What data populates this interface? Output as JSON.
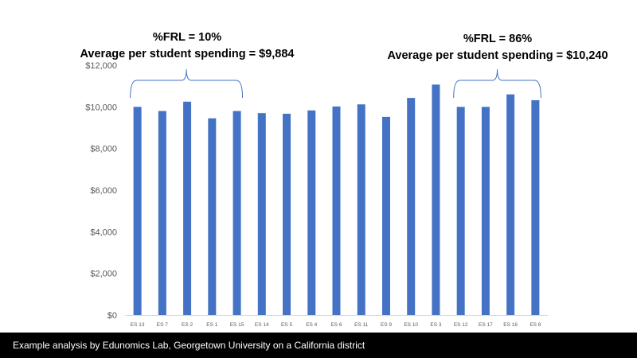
{
  "chart_data": {
    "type": "bar",
    "categories": [
      "ES 13",
      "ES 7",
      "ES 2",
      "ES 1",
      "ES 15",
      "ES 14",
      "ES 5",
      "ES 4",
      "ES 6",
      "ES 11",
      "ES 9",
      "ES 10",
      "ES 3",
      "ES 12",
      "ES 17",
      "ES 16",
      "ES 8"
    ],
    "values": [
      10000,
      9800,
      10250,
      9450,
      9800,
      9700,
      9670,
      9830,
      10020,
      10120,
      9520,
      10430,
      11070,
      10000,
      10000,
      10600,
      10320
    ],
    "ylim": [
      0,
      12000
    ],
    "y_ticks": [
      0,
      2000,
      4000,
      6000,
      8000,
      10000,
      12000
    ],
    "y_tick_labels": [
      "$0",
      "$2,000",
      "$4,000",
      "$6,000",
      "$8,000",
      "$10,000",
      "$12,000"
    ],
    "grid": false,
    "bar_color": "#4472C4",
    "annotations": [
      {
        "line1": "%FRL = 10%",
        "line2": "Average per student spending = $9,884",
        "spans_categories": [
          "ES 13",
          "ES 15"
        ]
      },
      {
        "line1": "%FRL = 86%",
        "line2": "Average per student spending = $10,240",
        "spans_categories": [
          "ES 12",
          "ES 8"
        ]
      }
    ]
  },
  "footer": {
    "text": "Example analysis by Edunomics Lab, Georgetown University on a California district",
    "background": "#000000",
    "color": "#ffffff"
  },
  "colors": {
    "bar": "#4472C4",
    "brace": "#4472C4",
    "axis": "#D9D9D9",
    "tick_text": "#595959"
  }
}
